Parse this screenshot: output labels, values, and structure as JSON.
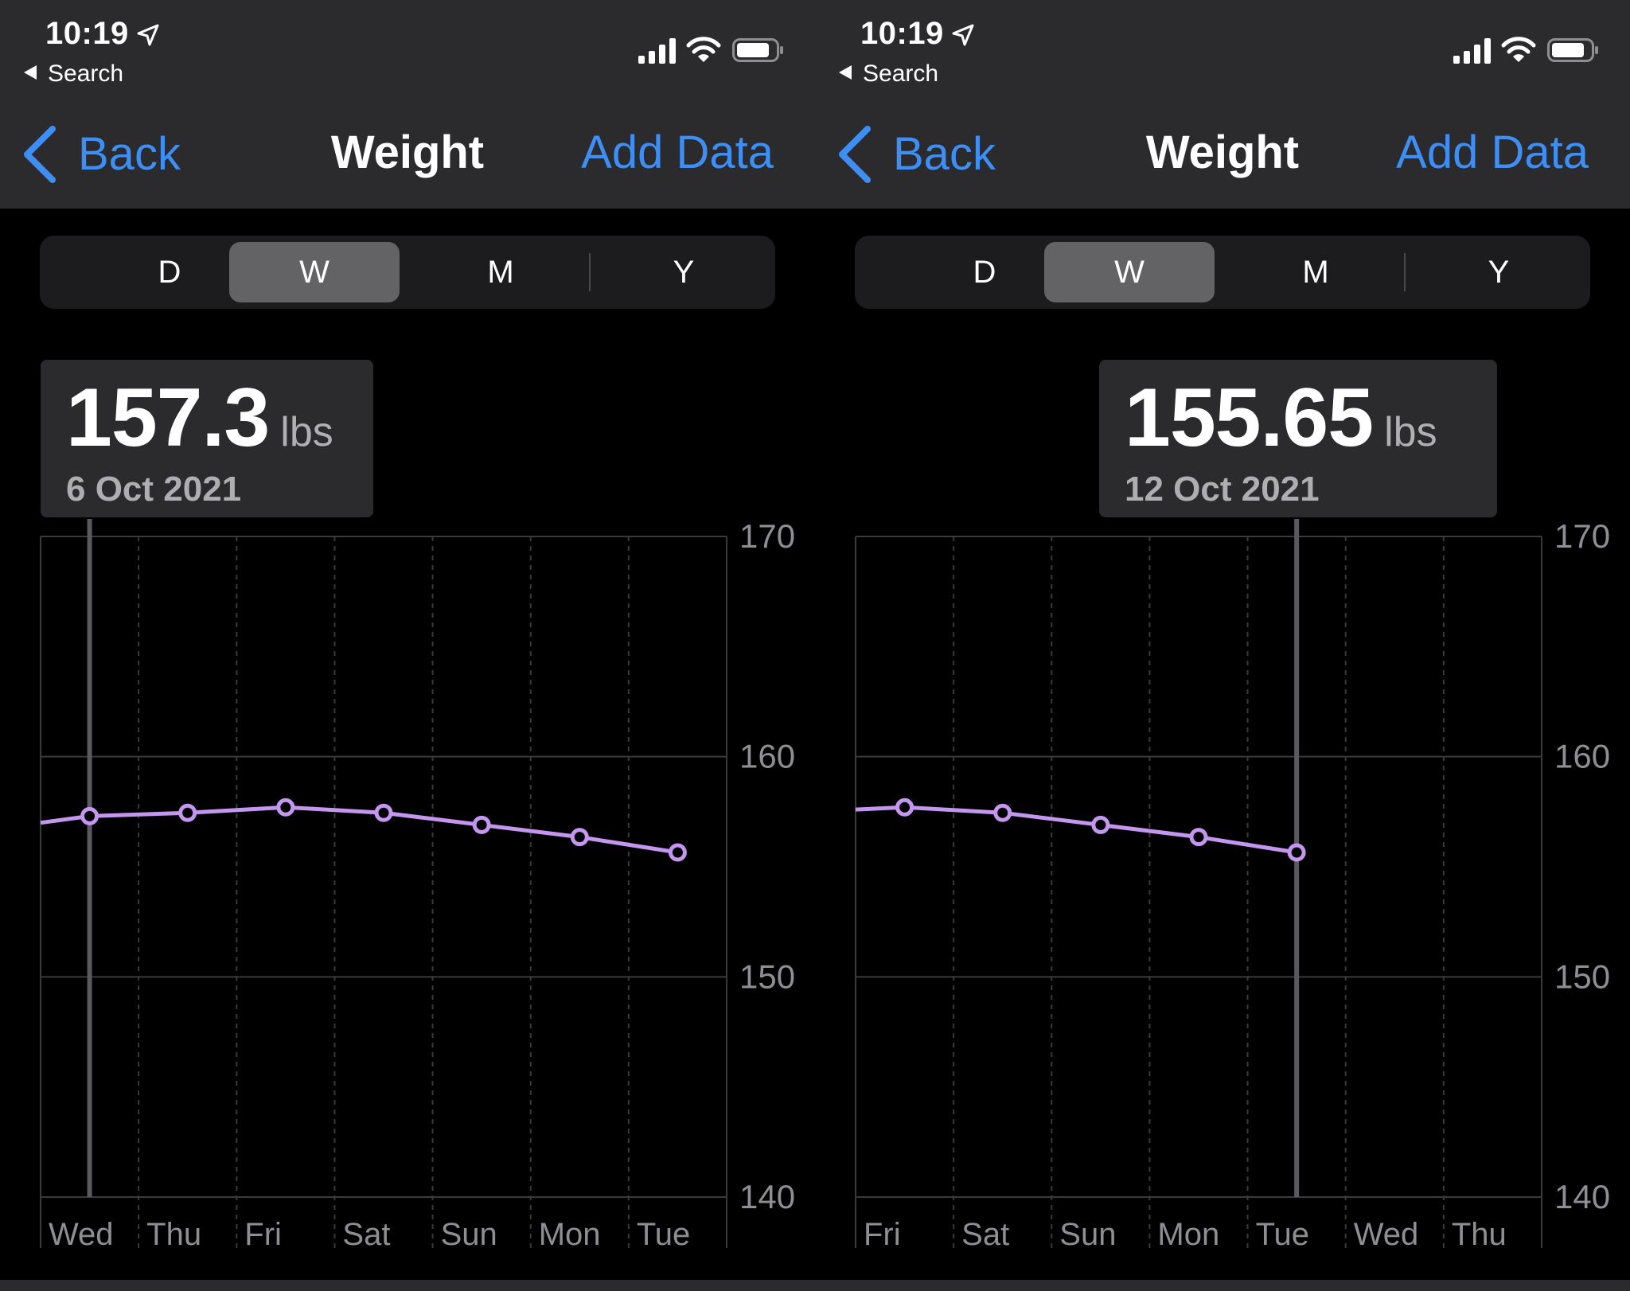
{
  "colors": {
    "accent": "#3d8ef5",
    "series": "#c496f0",
    "navbar": "#2b2b2e",
    "callout": "#2b2b2e"
  },
  "chart_defaults": {
    "ylim": [
      140,
      170
    ],
    "yticks": [
      170,
      160,
      150,
      140
    ]
  },
  "panels": [
    {
      "status": {
        "time": "10:19",
        "back_app": "Search"
      },
      "nav": {
        "back_label": "Back",
        "title": "Weight",
        "add_label": "Add Data"
      },
      "segments": [
        "D",
        "W",
        "M",
        "Y"
      ],
      "selected_segment": "W",
      "callout": {
        "value": "157.3",
        "unit": "lbs",
        "date": "6 Oct 2021"
      },
      "chart_data": {
        "type": "line",
        "categories": [
          "Wed",
          "Thu",
          "Fri",
          "Sat",
          "Sun",
          "Mon",
          "Tue"
        ],
        "series": [
          {
            "values": [
              157.3,
              157.45,
              157.7,
              157.45,
              156.9,
              156.35,
              155.65
            ]
          }
        ],
        "line_start_value": 157.0,
        "ylim": [
          140,
          170
        ],
        "yticks": [
          170,
          160,
          150,
          140
        ],
        "selected_index": 0,
        "grid": true,
        "legend": "none"
      }
    },
    {
      "status": {
        "time": "10:19",
        "back_app": "Search"
      },
      "nav": {
        "back_label": "Back",
        "title": "Weight",
        "add_label": "Add Data"
      },
      "segments": [
        "D",
        "W",
        "M",
        "Y"
      ],
      "selected_segment": "W",
      "callout": {
        "value": "155.65",
        "unit": "lbs",
        "date": "12 Oct 2021"
      },
      "chart_data": {
        "type": "line",
        "categories": [
          "Fri",
          "Sat",
          "Sun",
          "Mon",
          "Tue",
          "Wed",
          "Thu"
        ],
        "series": [
          {
            "values": [
              157.7,
              157.45,
              156.9,
              156.35,
              155.65,
              null,
              null
            ]
          }
        ],
        "line_start_value": 157.6,
        "ylim": [
          140,
          170
        ],
        "yticks": [
          170,
          160,
          150,
          140
        ],
        "selected_index": 4,
        "grid": true,
        "legend": "none"
      }
    }
  ]
}
